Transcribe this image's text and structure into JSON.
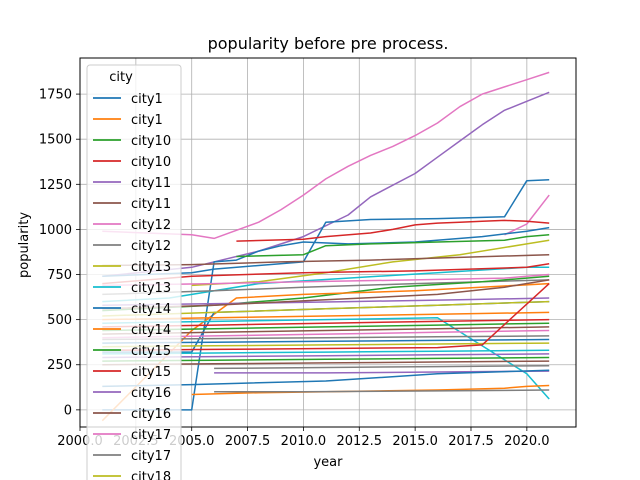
{
  "chart_data": {
    "type": "line",
    "title": "popularity before pre process.",
    "xlabel": "year",
    "ylabel": "popularity",
    "xlim": [
      2000,
      2022.2
    ],
    "ylim": [
      -95,
      1950
    ],
    "grid": true,
    "x_ticks": [
      2000,
      2002.5,
      2005,
      2007.5,
      2010,
      2012.5,
      2015,
      2017.5,
      2020
    ],
    "x_tick_labels": [
      "2000.0",
      "2002.5",
      "2005.0",
      "2007.5",
      "2010.0",
      "2012.5",
      "2015.0",
      "2017.5",
      "2020.0"
    ],
    "y_ticks": [
      0,
      250,
      500,
      750,
      1000,
      1250,
      1500,
      1750
    ],
    "y_tick_labels": [
      "0",
      "250",
      "500",
      "750",
      "1000",
      "1250",
      "1500",
      "1750"
    ],
    "legend": {
      "title": "city",
      "placement": "top-left",
      "entries": [
        {
          "label": "city1",
          "color": "#1f77b4"
        },
        {
          "label": "city1",
          "color": "#ff7f0e"
        },
        {
          "label": "city10",
          "color": "#2ca02c"
        },
        {
          "label": "city10",
          "color": "#d62728"
        },
        {
          "label": "city11",
          "color": "#9467bd"
        },
        {
          "label": "city11",
          "color": "#8c564b"
        },
        {
          "label": "city12",
          "color": "#e377c2"
        },
        {
          "label": "city12",
          "color": "#7f7f7f"
        },
        {
          "label": "city13",
          "color": "#bcbd22"
        },
        {
          "label": "city13",
          "color": "#17becf"
        },
        {
          "label": "city14",
          "color": "#1f77b4"
        },
        {
          "label": "city14",
          "color": "#ff7f0e"
        },
        {
          "label": "city15",
          "color": "#2ca02c"
        },
        {
          "label": "city15",
          "color": "#d62728"
        },
        {
          "label": "city16",
          "color": "#9467bd"
        },
        {
          "label": "city16",
          "color": "#8c564b"
        },
        {
          "label": "city17",
          "color": "#e377c2"
        },
        {
          "label": "city17",
          "color": "#7f7f7f"
        },
        {
          "label": "city18",
          "color": "#bcbd22"
        }
      ]
    },
    "series": [
      {
        "color": "#e377c2",
        "x": [
          2001,
          2005,
          2006,
          2008,
          2009,
          2010,
          2011,
          2012,
          2013,
          2014,
          2015,
          2016,
          2017,
          2018,
          2019,
          2020,
          2021
        ],
        "y": [
          990,
          970,
          950,
          1040,
          1110,
          1190,
          1280,
          1350,
          1410,
          1460,
          1520,
          1590,
          1680,
          1750,
          1790,
          1830,
          1870
        ]
      },
      {
        "color": "#9467bd",
        "x": [
          2001,
          2005,
          2008,
          2010,
          2012,
          2013,
          2015,
          2016,
          2017,
          2018,
          2019,
          2020,
          2021
        ],
        "y": [
          740,
          790,
          880,
          960,
          1080,
          1180,
          1310,
          1400,
          1490,
          1580,
          1660,
          1710,
          1760
        ]
      },
      {
        "color": "#1f77b4",
        "x": [
          2001,
          2005,
          2006,
          2008,
          2010,
          2011,
          2013,
          2016,
          2019,
          2020,
          2021
        ],
        "y": [
          740,
          760,
          780,
          800,
          820,
          1040,
          1055,
          1060,
          1070,
          1270,
          1275
        ]
      },
      {
        "color": "#e377c2",
        "x": [
          2019,
          2020,
          2021
        ],
        "y": [
          970,
          1030,
          1190
        ]
      },
      {
        "color": "#d62728",
        "x": [
          2007,
          2010,
          2011,
          2013,
          2014,
          2015,
          2016,
          2017,
          2018,
          2019,
          2020,
          2021
        ],
        "y": [
          935,
          945,
          960,
          980,
          1000,
          1025,
          1035,
          1040,
          1045,
          1050,
          1045,
          1035
        ]
      },
      {
        "color": "#1f77b4",
        "x": [
          2001,
          2005,
          2006,
          2007,
          2008,
          2009,
          2010,
          2012,
          2015,
          2018,
          2020,
          2021
        ],
        "y": [
          0,
          0,
          820,
          830,
          880,
          910,
          930,
          920,
          930,
          960,
          990,
          1010
        ]
      },
      {
        "color": "#2ca02c",
        "x": [
          2007,
          2010,
          2011,
          2013,
          2016,
          2019,
          2020,
          2021
        ],
        "y": [
          850,
          860,
          910,
          920,
          930,
          940,
          960,
          970
        ]
      },
      {
        "color": "#bcbd22",
        "x": [
          2005,
          2008,
          2011,
          2014,
          2017,
          2020,
          2021
        ],
        "y": [
          690,
          710,
          760,
          820,
          860,
          920,
          940
        ]
      },
      {
        "color": "#17becf",
        "x": [
          2001,
          2004,
          2008,
          2012,
          2016,
          2020,
          2021
        ],
        "y": [
          600,
          620,
          700,
          730,
          760,
          790,
          790
        ]
      },
      {
        "color": "#8c564b",
        "x": [
          2001,
          2005,
          2009,
          2013,
          2017,
          2021
        ],
        "y": [
          800,
          805,
          820,
          830,
          845,
          860
        ]
      },
      {
        "color": "#e377c2",
        "x": [
          2001,
          2006,
          2010,
          2015,
          2019,
          2020,
          2021
        ],
        "y": [
          690,
          700,
          710,
          720,
          730,
          740,
          750
        ]
      },
      {
        "color": "#7f7f7f",
        "x": [
          2001,
          2006,
          2010,
          2015,
          2021
        ],
        "y": [
          640,
          660,
          680,
          700,
          720
        ]
      },
      {
        "color": "#2ca02c",
        "x": [
          2001,
          2006,
          2010,
          2014,
          2018,
          2021
        ],
        "y": [
          550,
          580,
          620,
          680,
          710,
          740
        ]
      },
      {
        "color": "#d62728",
        "x": [
          2001,
          2005,
          2010,
          2015,
          2020,
          2021
        ],
        "y": [
          700,
          740,
          760,
          770,
          790,
          810
        ]
      },
      {
        "color": "#ff7f0e",
        "x": [
          2001,
          2005,
          2007,
          2010,
          2015,
          2021
        ],
        "y": [
          -60,
          440,
          620,
          640,
          660,
          700
        ]
      },
      {
        "color": "#9467bd",
        "x": [
          2001,
          2007,
          2012,
          2017,
          2021
        ],
        "y": [
          580,
          590,
          600,
          610,
          620
        ]
      },
      {
        "color": "#1f77b4",
        "x": [
          2001,
          2005,
          2006,
          2011,
          2016,
          2021
        ],
        "y": [
          320,
          320,
          540,
          560,
          580,
          600
        ]
      },
      {
        "color": "#bcbd22",
        "x": [
          2001,
          2006,
          2011,
          2016,
          2021
        ],
        "y": [
          520,
          540,
          560,
          580,
          600
        ]
      },
      {
        "color": "#ff7f0e",
        "x": [
          2001,
          2006,
          2011,
          2016,
          2021
        ],
        "y": [
          500,
          510,
          520,
          530,
          540
        ]
      },
      {
        "color": "#17becf",
        "x": [
          2001,
          2006,
          2011,
          2016,
          2020,
          2021
        ],
        "y": [
          480,
          490,
          500,
          510,
          200,
          60
        ]
      },
      {
        "color": "#d62728",
        "x": [
          2001,
          2006,
          2011,
          2016,
          2021
        ],
        "y": [
          460,
          470,
          480,
          490,
          500
        ]
      },
      {
        "color": "#2ca02c",
        "x": [
          2001,
          2006,
          2011,
          2016,
          2021
        ],
        "y": [
          440,
          450,
          460,
          470,
          480
        ]
      },
      {
        "color": "#8c564b",
        "x": [
          2001,
          2006,
          2011,
          2016,
          2021
        ],
        "y": [
          420,
          430,
          440,
          450,
          460
        ]
      },
      {
        "color": "#e377c2",
        "x": [
          2001,
          2006,
          2011,
          2016,
          2021
        ],
        "y": [
          400,
          410,
          420,
          430,
          440
        ]
      },
      {
        "color": "#7f7f7f",
        "x": [
          2001,
          2006,
          2011,
          2016,
          2021
        ],
        "y": [
          390,
          395,
          400,
          405,
          410
        ]
      },
      {
        "color": "#1f77b4",
        "x": [
          2001,
          2006,
          2011,
          2016,
          2021
        ],
        "y": [
          370,
          375,
          380,
          385,
          390
        ]
      },
      {
        "color": "#bcbd22",
        "x": [
          2001,
          2006,
          2011,
          2016,
          2021
        ],
        "y": [
          350,
          355,
          360,
          365,
          370
        ]
      },
      {
        "color": "#d62728",
        "x": [
          2001,
          2006,
          2011,
          2016,
          2018,
          2021
        ],
        "y": [
          330,
          335,
          340,
          345,
          360,
          700
        ]
      },
      {
        "color": "#17becf",
        "x": [
          2001,
          2006,
          2011,
          2016,
          2021
        ],
        "y": [
          310,
          315,
          320,
          325,
          330
        ]
      },
      {
        "color": "#9467bd",
        "x": [
          2001,
          2006,
          2011,
          2016,
          2021
        ],
        "y": [
          290,
          295,
          300,
          305,
          310
        ]
      },
      {
        "color": "#2ca02c",
        "x": [
          2001,
          2006,
          2011,
          2016,
          2021
        ],
        "y": [
          270,
          275,
          280,
          285,
          290
        ]
      },
      {
        "color": "#8c564b",
        "x": [
          2001,
          2006,
          2011,
          2016,
          2021
        ],
        "y": [
          250,
          255,
          260,
          265,
          270
        ]
      },
      {
        "color": "#7f7f7f",
        "x": [
          2006,
          2011,
          2016,
          2021
        ],
        "y": [
          230,
          235,
          240,
          245
        ]
      },
      {
        "color": "#9467bd",
        "x": [
          2006,
          2011,
          2016,
          2021
        ],
        "y": [
          205,
          205,
          210,
          215
        ]
      },
      {
        "color": "#1f77b4",
        "x": [
          2001,
          2005,
          2011,
          2016,
          2021
        ],
        "y": [
          130,
          140,
          160,
          200,
          220
        ]
      },
      {
        "color": "#ff7f0e",
        "x": [
          2005,
          2008,
          2011,
          2016,
          2019,
          2020,
          2021
        ],
        "y": [
          85,
          95,
          100,
          110,
          120,
          130,
          135
        ]
      },
      {
        "color": "#7f7f7f",
        "x": [
          2006,
          2010,
          2016,
          2021
        ],
        "y": [
          100,
          100,
          105,
          110
        ]
      },
      {
        "color": "#8c564b",
        "x": [
          2001,
          2006,
          2011,
          2016,
          2019,
          2021
        ],
        "y": [
          560,
          580,
          610,
          640,
          680,
          720
        ]
      }
    ]
  }
}
